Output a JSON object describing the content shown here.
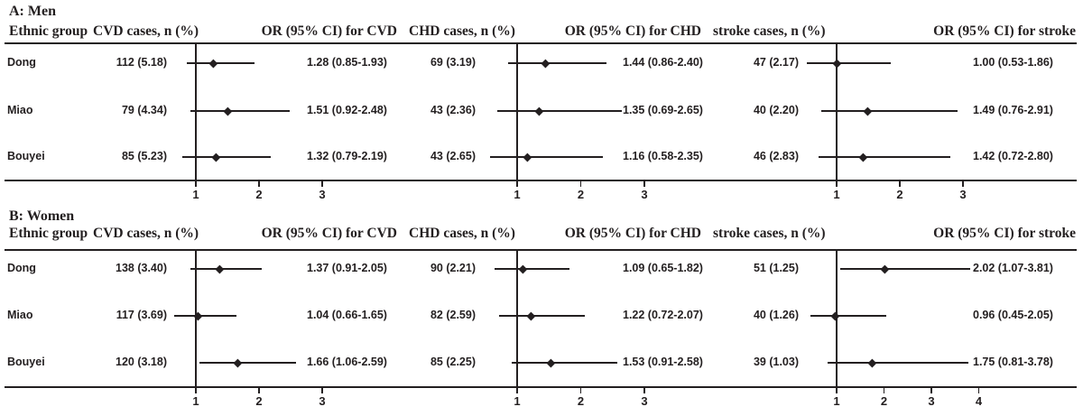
{
  "figure": {
    "background": "#ffffff",
    "ink_color": "#231f20"
  },
  "chart_data": [
    {
      "type": "forest",
      "title": "A: Men",
      "column_headers": [
        "Ethnic group",
        "CVD cases, n (%)",
        "OR (95% CI) for CVD",
        "CHD cases, n (%)",
        "OR (95% CI) for CHD",
        "stroke cases, n (%)",
        "OR (95% CI) for stroke"
      ],
      "reference_line": 1,
      "axes": {
        "cvd": {
          "ticks": [
            1,
            2,
            3
          ],
          "range": [
            0.5,
            3.5
          ]
        },
        "chd": {
          "ticks": [
            1,
            2,
            3
          ],
          "range": [
            0.5,
            3.5
          ]
        },
        "stroke": {
          "ticks": [
            1,
            2,
            3
          ],
          "range": [
            0.5,
            3.5
          ]
        }
      },
      "rows": [
        {
          "group": "Dong",
          "cvd": {
            "cases": "112 (5.18)",
            "or": 1.28,
            "ci_low": 0.85,
            "ci_high": 1.93,
            "or_label": "1.28 (0.85-1.93)"
          },
          "chd": {
            "cases": "69 (3.19)",
            "or": 1.44,
            "ci_low": 0.86,
            "ci_high": 2.4,
            "or_label": "1.44 (0.86-2.40)"
          },
          "stroke": {
            "cases": "47 (2.17)",
            "or": 1.0,
            "ci_low": 0.53,
            "ci_high": 1.86,
            "or_label": "1.00 (0.53-1.86)"
          }
        },
        {
          "group": "Miao",
          "cvd": {
            "cases": "79 (4.34)",
            "or": 1.51,
            "ci_low": 0.92,
            "ci_high": 2.48,
            "or_label": "1.51 (0.92-2.48)"
          },
          "chd": {
            "cases": "43 (2.36)",
            "or": 1.35,
            "ci_low": 0.69,
            "ci_high": 2.65,
            "or_label": "1.35 (0.69-2.65)"
          },
          "stroke": {
            "cases": "40 (2.20)",
            "or": 1.49,
            "ci_low": 0.76,
            "ci_high": 2.91,
            "or_label": "1.49 (0.76-2.91)"
          }
        },
        {
          "group": "Bouyei",
          "cvd": {
            "cases": "85 (5.23)",
            "or": 1.32,
            "ci_low": 0.79,
            "ci_high": 2.19,
            "or_label": "1.32 (0.79-2.19)"
          },
          "chd": {
            "cases": "43 (2.65)",
            "or": 1.16,
            "ci_low": 0.58,
            "ci_high": 2.35,
            "or_label": "1.16 (0.58-2.35)"
          },
          "stroke": {
            "cases": "46 (2.83)",
            "or": 1.42,
            "ci_low": 0.72,
            "ci_high": 2.8,
            "or_label": "1.42 (0.72-2.80)"
          }
        }
      ]
    },
    {
      "type": "forest",
      "title": "B: Women",
      "column_headers": [
        "Ethnic group",
        "CVD cases, n (%)",
        "OR (95% CI) for CVD",
        "CHD cases, n (%)",
        "OR (95% CI) for CHD",
        "stroke cases, n (%)",
        "OR (95% CI) for stroke"
      ],
      "reference_line": 1,
      "axes": {
        "cvd": {
          "ticks": [
            1,
            2,
            3
          ],
          "range": [
            0.5,
            3.5
          ]
        },
        "chd": {
          "ticks": [
            1,
            2,
            3
          ],
          "range": [
            0.5,
            3.5
          ]
        },
        "stroke": {
          "ticks": [
            1,
            2,
            3,
            4
          ],
          "range": [
            0.4,
            4.6
          ]
        }
      },
      "rows": [
        {
          "group": "Dong",
          "cvd": {
            "cases": "138 (3.40)",
            "or": 1.37,
            "ci_low": 0.91,
            "ci_high": 2.05,
            "or_label": "1.37 (0.91-2.05)"
          },
          "chd": {
            "cases": "90 (2.21)",
            "or": 1.09,
            "ci_low": 0.65,
            "ci_high": 1.82,
            "or_label": "1.09 (0.65-1.82)"
          },
          "stroke": {
            "cases": "51 (1.25)",
            "or": 2.02,
            "ci_low": 1.07,
            "ci_high": 3.81,
            "or_label": "2.02 (1.07-3.81)"
          }
        },
        {
          "group": "Miao",
          "cvd": {
            "cases": "117 (3.69)",
            "or": 1.04,
            "ci_low": 0.66,
            "ci_high": 1.65,
            "or_label": "1.04 (0.66-1.65)"
          },
          "chd": {
            "cases": "82 (2.59)",
            "or": 1.22,
            "ci_low": 0.72,
            "ci_high": 2.07,
            "or_label": "1.22 (0.72-2.07)"
          },
          "stroke": {
            "cases": "40 (1.26)",
            "or": 0.96,
            "ci_low": 0.45,
            "ci_high": 2.05,
            "or_label": "0.96 (0.45-2.05)"
          }
        },
        {
          "group": "Bouyei",
          "cvd": {
            "cases": "120 (3.18)",
            "or": 1.66,
            "ci_low": 1.06,
            "ci_high": 2.59,
            "or_label": "1.66 (1.06-2.59)"
          },
          "chd": {
            "cases": "85 (2.25)",
            "or": 1.53,
            "ci_low": 0.91,
            "ci_high": 2.58,
            "or_label": "1.53 (0.91-2.58)"
          },
          "stroke": {
            "cases": "39 (1.03)",
            "or": 1.75,
            "ci_low": 0.81,
            "ci_high": 3.78,
            "or_label": "1.75 (0.81-3.78)"
          }
        }
      ]
    }
  ]
}
